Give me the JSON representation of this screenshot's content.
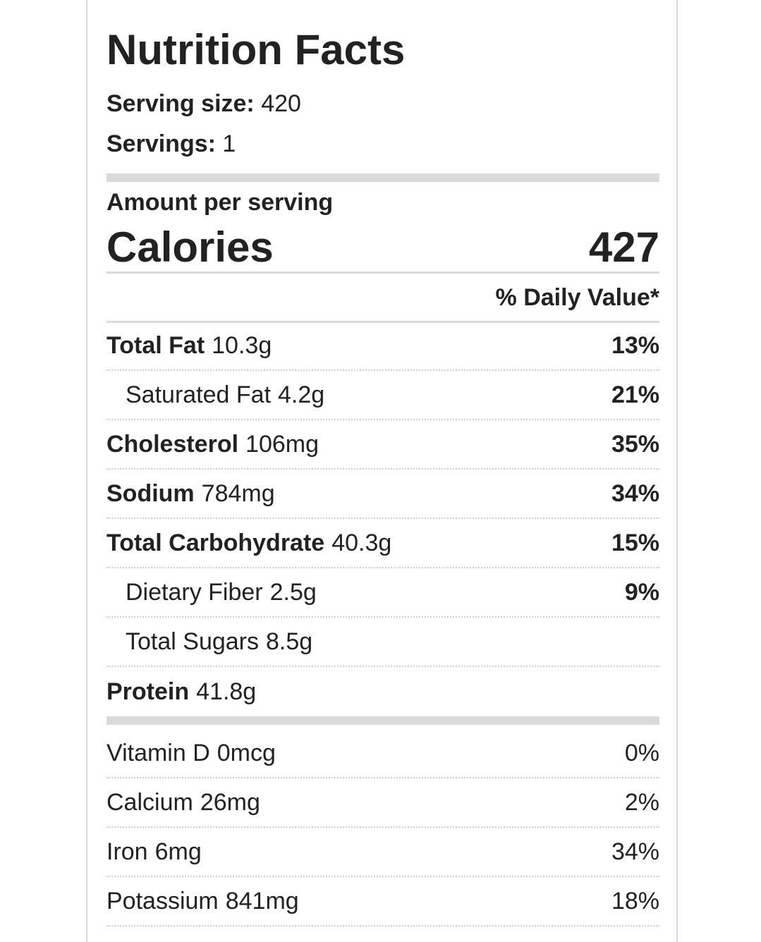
{
  "header": {
    "title": "Nutrition Facts",
    "serving_size": {
      "label": "Serving size:",
      "value": 420
    },
    "servings": {
      "label": "Servings:",
      "value": 1
    }
  },
  "calories": {
    "heading": "Amount per serving",
    "label": "Calories",
    "value": 427
  },
  "daily_value_heading": "% Daily Value*",
  "nutrients": [
    {
      "name": "Total Fat",
      "amount": "10.3g",
      "dv": "13%",
      "sub": [
        {
          "name": "Saturated Fat",
          "amount": "4.2g",
          "dv": "21%"
        }
      ]
    },
    {
      "name": "Cholesterol",
      "amount": "106mg",
      "dv": "35%"
    },
    {
      "name": "Sodium",
      "amount": "784mg",
      "dv": "34%"
    },
    {
      "name": "Total Carbohydrate",
      "amount": "40.3g",
      "dv": "15%",
      "sub": [
        {
          "name": "Dietary Fiber",
          "amount": "2.5g",
          "dv": "9%"
        },
        {
          "name": "Total Sugars",
          "amount": "8.5g"
        }
      ]
    },
    {
      "name": "Protein",
      "amount": "41.8g"
    }
  ],
  "vitamins": [
    {
      "name": "Vitamin D",
      "amount": "0mcg",
      "dv": "0%"
    },
    {
      "name": "Calcium",
      "amount": "26mg",
      "dv": "2%"
    },
    {
      "name": "Iron",
      "amount": "6mg",
      "dv": "34%"
    },
    {
      "name": "Potassium",
      "amount": "841mg",
      "dv": "18%"
    }
  ]
}
